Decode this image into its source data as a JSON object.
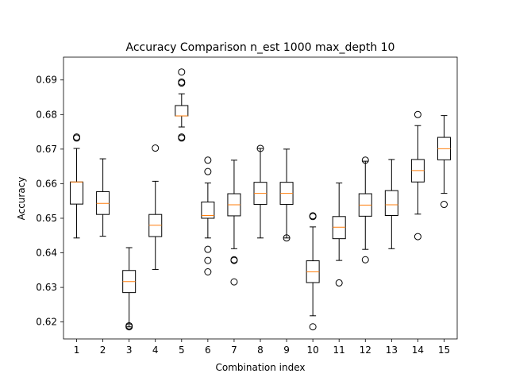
{
  "chart_data": {
    "type": "box",
    "title": "Accuracy Comparison n_est 1000 max_depth 10",
    "xlabel": "Combination index",
    "ylabel": "Accuracy",
    "ylim": [
      0.6151,
      0.6966
    ],
    "y_ticks": [
      0.62,
      0.63,
      0.64,
      0.65,
      0.66,
      0.67,
      0.68,
      0.69
    ],
    "y_tick_labels": [
      "0.62",
      "0.63",
      "0.64",
      "0.65",
      "0.66",
      "0.67",
      "0.68",
      "0.69"
    ],
    "categories": [
      "1",
      "2",
      "3",
      "4",
      "5",
      "6",
      "7",
      "8",
      "9",
      "10",
      "11",
      "12",
      "13",
      "14",
      "15"
    ],
    "colors": {
      "box": "#000000",
      "median": "#ff7f0e",
      "flier": "#000000"
    },
    "boxes": [
      {
        "index": "1",
        "whisker_low": 0.6443,
        "q1": 0.6541,
        "median": 0.6605,
        "q3": 0.6605,
        "whisker_high": 0.6702,
        "fliers": [
          0.6732,
          0.6735
        ]
      },
      {
        "index": "2",
        "whisker_low": 0.6448,
        "q1": 0.6511,
        "median": 0.6543,
        "q3": 0.6577,
        "whisker_high": 0.6672,
        "fliers": []
      },
      {
        "index": "3",
        "whisker_low": 0.6186,
        "q1": 0.6285,
        "median": 0.6317,
        "q3": 0.6349,
        "whisker_high": 0.6415,
        "fliers": [
          0.6186,
          0.6189
        ]
      },
      {
        "index": "4",
        "whisker_low": 0.6352,
        "q1": 0.6447,
        "median": 0.648,
        "q3": 0.6511,
        "whisker_high": 0.6607,
        "fliers": [
          0.6703
        ]
      },
      {
        "index": "5",
        "whisker_low": 0.6764,
        "q1": 0.6796,
        "median": 0.6796,
        "q3": 0.6826,
        "whisker_high": 0.686,
        "fliers": [
          0.6891,
          0.6894,
          0.6923,
          0.6732,
          0.6735
        ]
      },
      {
        "index": "6",
        "whisker_low": 0.6443,
        "q1": 0.65,
        "median": 0.6508,
        "q3": 0.6547,
        "whisker_high": 0.6602,
        "fliers": [
          0.6668,
          0.6635,
          0.641,
          0.6378,
          0.6345
        ]
      },
      {
        "index": "7",
        "whisker_low": 0.6412,
        "q1": 0.6507,
        "median": 0.6539,
        "q3": 0.6571,
        "whisker_high": 0.6668,
        "fliers": [
          0.638,
          0.6378,
          0.6316
        ]
      },
      {
        "index": "8",
        "whisker_low": 0.6443,
        "q1": 0.654,
        "median": 0.6572,
        "q3": 0.6604,
        "whisker_high": 0.6702,
        "fliers": [
          0.6702
        ]
      },
      {
        "index": "9",
        "whisker_low": 0.6443,
        "q1": 0.654,
        "median": 0.6572,
        "q3": 0.6604,
        "whisker_high": 0.67,
        "fliers": [
          0.6443
        ]
      },
      {
        "index": "10",
        "whisker_low": 0.6218,
        "q1": 0.6314,
        "median": 0.6345,
        "q3": 0.6377,
        "whisker_high": 0.6475,
        "fliers": [
          0.6507,
          0.6505,
          0.6186
        ]
      },
      {
        "index": "11",
        "whisker_low": 0.6378,
        "q1": 0.6441,
        "median": 0.6474,
        "q3": 0.6505,
        "whisker_high": 0.6602,
        "fliers": [
          0.6313
        ]
      },
      {
        "index": "12",
        "whisker_low": 0.641,
        "q1": 0.6506,
        "median": 0.6538,
        "q3": 0.6571,
        "whisker_high": 0.6665,
        "fliers": [
          0.6668,
          0.638
        ]
      },
      {
        "index": "13",
        "whisker_low": 0.6412,
        "q1": 0.6508,
        "median": 0.6539,
        "q3": 0.658,
        "whisker_high": 0.667,
        "fliers": []
      },
      {
        "index": "14",
        "whisker_low": 0.6512,
        "q1": 0.6605,
        "median": 0.6638,
        "q3": 0.667,
        "whisker_high": 0.6768,
        "fliers": [
          0.68,
          0.6447
        ]
      },
      {
        "index": "15",
        "whisker_low": 0.6572,
        "q1": 0.6669,
        "median": 0.6701,
        "q3": 0.6734,
        "whisker_high": 0.6797,
        "fliers": [
          0.654
        ]
      }
    ]
  }
}
